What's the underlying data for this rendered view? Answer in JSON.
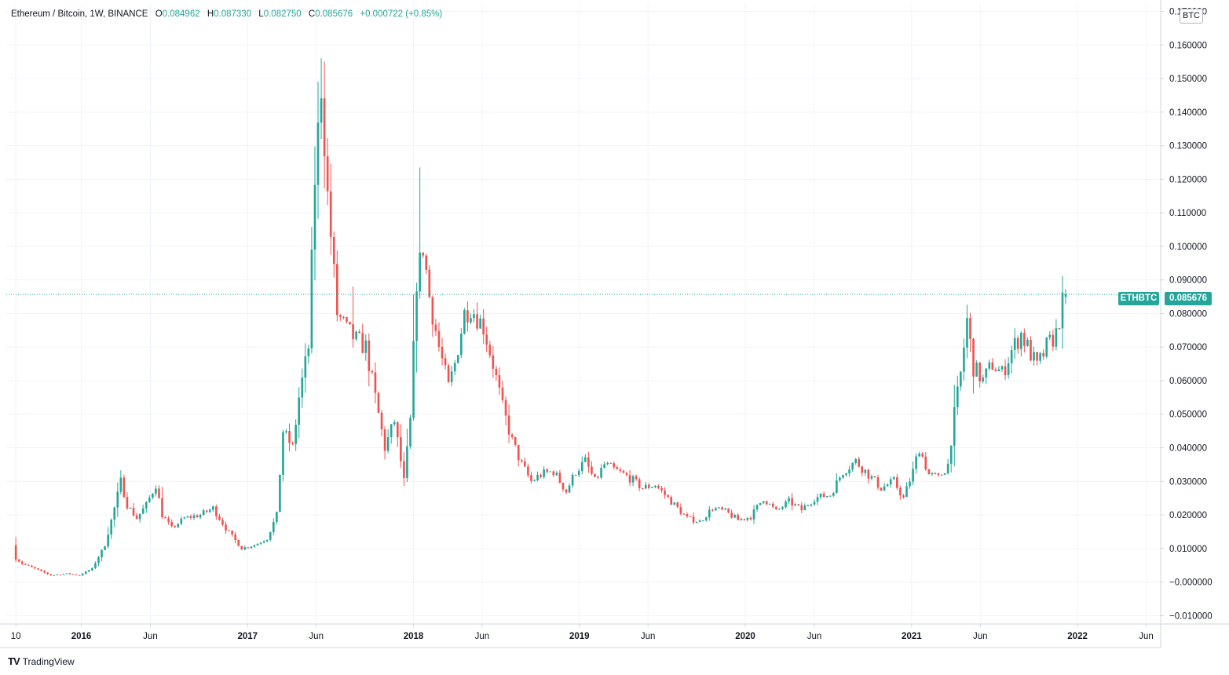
{
  "header": {
    "symbol": "Ethereum / Bitcoin, 1W, BINANCE",
    "o_label": "O",
    "o_value": "0.084962",
    "h_label": "H",
    "h_value": "0.087330",
    "l_label": "L",
    "l_value": "0.082750",
    "c_label": "C",
    "c_value": "0.085676",
    "change": "+0.000722 (+0.85%)"
  },
  "unit": "BTC",
  "last_price": {
    "symbol": "ETHBTC",
    "value": "0.085676"
  },
  "brand": {
    "logo": "TV",
    "name": "TradingView"
  },
  "colors": {
    "up": "#26a69a",
    "down": "#ef5350",
    "grid": "#f0f3fa",
    "axis": "#d1d4dc"
  },
  "chart_data": {
    "type": "candlestick",
    "title": "Ethereum / Bitcoin, 1W, BINANCE",
    "y_ticks": [
      "−0.010000",
      "−0.000000",
      "0.010000",
      "0.020000",
      "0.030000",
      "0.040000",
      "0.050000",
      "0.060000",
      "0.070000",
      "0.080000",
      "0.090000",
      "0.100000",
      "0.110000",
      "0.120000",
      "0.130000",
      "0.140000",
      "0.150000",
      "0.160000",
      "0.170000"
    ],
    "x_ticks": [
      {
        "label": "10",
        "date": "2015-08-10",
        "bold": false
      },
      {
        "label": "2016",
        "date": "2016-01-01",
        "bold": true
      },
      {
        "label": "Jun",
        "date": "2016-06-01",
        "bold": false
      },
      {
        "label": "2017",
        "date": "2017-01-01",
        "bold": true
      },
      {
        "label": "Jun",
        "date": "2017-06-01",
        "bold": false
      },
      {
        "label": "2018",
        "date": "2018-01-01",
        "bold": true
      },
      {
        "label": "Jun",
        "date": "2018-06-01",
        "bold": false
      },
      {
        "label": "2019",
        "date": "2019-01-01",
        "bold": true
      },
      {
        "label": "Jun",
        "date": "2019-06-01",
        "bold": false
      },
      {
        "label": "2020",
        "date": "2020-01-01",
        "bold": true
      },
      {
        "label": "Jun",
        "date": "2020-06-01",
        "bold": false
      },
      {
        "label": "2021",
        "date": "2021-01-01",
        "bold": true
      },
      {
        "label": "Jun",
        "date": "2021-06-01",
        "bold": false
      },
      {
        "label": "2022",
        "date": "2022-01-01",
        "bold": true
      },
      {
        "label": "Jun",
        "date": "2022-06-01",
        "bold": false
      }
    ],
    "ylim": [
      -0.0125,
      0.172
    ],
    "xlim": [
      "2015-07-20",
      "2022-07-03"
    ],
    "close_anchors": [
      [
        "2015-08-10",
        0.007
      ],
      [
        "2015-08-24",
        0.0055
      ],
      [
        "2015-09-21",
        0.004
      ],
      [
        "2015-10-26",
        0.002
      ],
      [
        "2015-11-30",
        0.0025
      ],
      [
        "2015-12-28",
        0.002
      ],
      [
        "2016-01-25",
        0.004
      ],
      [
        "2016-02-22",
        0.011
      ],
      [
        "2016-03-14",
        0.022
      ],
      [
        "2016-03-28",
        0.03
      ],
      [
        "2016-04-11",
        0.023
      ],
      [
        "2016-05-02",
        0.019
      ],
      [
        "2016-05-23",
        0.023
      ],
      [
        "2016-06-13",
        0.029
      ],
      [
        "2016-06-27",
        0.02
      ],
      [
        "2016-07-18",
        0.016
      ],
      [
        "2016-08-15",
        0.019
      ],
      [
        "2016-09-19",
        0.02
      ],
      [
        "2016-10-17",
        0.022
      ],
      [
        "2016-11-14",
        0.016
      ],
      [
        "2016-12-19",
        0.01
      ],
      [
        "2017-01-16",
        0.011
      ],
      [
        "2017-02-13",
        0.013
      ],
      [
        "2017-03-06",
        0.02
      ],
      [
        "2017-03-20",
        0.045
      ],
      [
        "2017-04-10",
        0.04
      ],
      [
        "2017-04-24",
        0.055
      ],
      [
        "2017-05-15",
        0.07
      ],
      [
        "2017-05-29",
        0.12
      ],
      [
        "2017-06-12",
        0.148
      ],
      [
        "2017-06-26",
        0.115
      ],
      [
        "2017-07-17",
        0.08
      ],
      [
        "2017-08-07",
        0.075
      ],
      [
        "2017-08-28",
        0.072
      ],
      [
        "2017-09-18",
        0.07
      ],
      [
        "2017-10-09",
        0.055
      ],
      [
        "2017-10-30",
        0.04
      ],
      [
        "2017-11-20",
        0.048
      ],
      [
        "2017-12-11",
        0.03
      ],
      [
        "2017-12-25",
        0.048
      ],
      [
        "2018-01-08",
        0.09
      ],
      [
        "2018-01-22",
        0.1
      ],
      [
        "2018-02-05",
        0.085
      ],
      [
        "2018-02-26",
        0.07
      ],
      [
        "2018-03-19",
        0.058
      ],
      [
        "2018-04-02",
        0.065
      ],
      [
        "2018-04-23",
        0.08
      ],
      [
        "2018-05-07",
        0.082
      ],
      [
        "2018-06-04",
        0.076
      ],
      [
        "2018-06-25",
        0.065
      ],
      [
        "2018-07-16",
        0.052
      ],
      [
        "2018-08-06",
        0.042
      ],
      [
        "2018-08-27",
        0.035
      ],
      [
        "2018-09-17",
        0.03
      ],
      [
        "2018-10-08",
        0.032
      ],
      [
        "2018-11-05",
        0.033
      ],
      [
        "2018-12-03",
        0.027
      ],
      [
        "2018-12-24",
        0.033
      ],
      [
        "2019-01-14",
        0.036
      ],
      [
        "2019-02-04",
        0.03
      ],
      [
        "2019-02-25",
        0.035
      ],
      [
        "2019-03-25",
        0.033
      ],
      [
        "2019-04-22",
        0.031
      ],
      [
        "2019-05-20",
        0.028
      ],
      [
        "2019-06-17",
        0.029
      ],
      [
        "2019-07-08",
        0.026
      ],
      [
        "2019-07-29",
        0.023
      ],
      [
        "2019-08-26",
        0.019
      ],
      [
        "2019-09-23",
        0.018
      ],
      [
        "2019-10-21",
        0.022
      ],
      [
        "2019-11-18",
        0.021
      ],
      [
        "2019-12-16",
        0.0185
      ],
      [
        "2020-01-13",
        0.0195
      ],
      [
        "2020-02-10",
        0.025
      ],
      [
        "2020-03-09",
        0.021
      ],
      [
        "2020-04-06",
        0.024
      ],
      [
        "2020-05-04",
        0.0215
      ],
      [
        "2020-06-01",
        0.025
      ],
      [
        "2020-07-06",
        0.026
      ],
      [
        "2020-08-03",
        0.033
      ],
      [
        "2020-08-31",
        0.036
      ],
      [
        "2020-09-28",
        0.032
      ],
      [
        "2020-10-26",
        0.028
      ],
      [
        "2020-11-23",
        0.03
      ],
      [
        "2020-12-14",
        0.025
      ],
      [
        "2021-01-04",
        0.033
      ],
      [
        "2021-01-18",
        0.04
      ],
      [
        "2021-02-08",
        0.032
      ],
      [
        "2021-03-01",
        0.031
      ],
      [
        "2021-03-22",
        0.035
      ],
      [
        "2021-04-05",
        0.05
      ],
      [
        "2021-04-19",
        0.062
      ],
      [
        "2021-05-03",
        0.078
      ],
      [
        "2021-05-17",
        0.064
      ],
      [
        "2021-06-07",
        0.06
      ],
      [
        "2021-06-28",
        0.065
      ],
      [
        "2021-07-19",
        0.062
      ],
      [
        "2021-08-09",
        0.069
      ],
      [
        "2021-08-30",
        0.074
      ],
      [
        "2021-09-13",
        0.07
      ],
      [
        "2021-10-04",
        0.064
      ],
      [
        "2021-10-25",
        0.07
      ],
      [
        "2021-11-15",
        0.074
      ],
      [
        "2021-11-29",
        0.083
      ],
      [
        "2021-12-06",
        0.085676
      ]
    ],
    "notable_wicks": [
      [
        "2017-06-12",
        0.156
      ],
      [
        "2018-01-15",
        0.1235
      ],
      [
        "2017-08-21",
        0.088
      ],
      [
        "2021-05-03",
        0.0825
      ],
      [
        "2021-12-06",
        0.08733
      ]
    ],
    "last_bar": {
      "date": "2021-12-06",
      "open": 0.084962,
      "high": 0.08733,
      "low": 0.08275,
      "close": 0.085676
    }
  }
}
